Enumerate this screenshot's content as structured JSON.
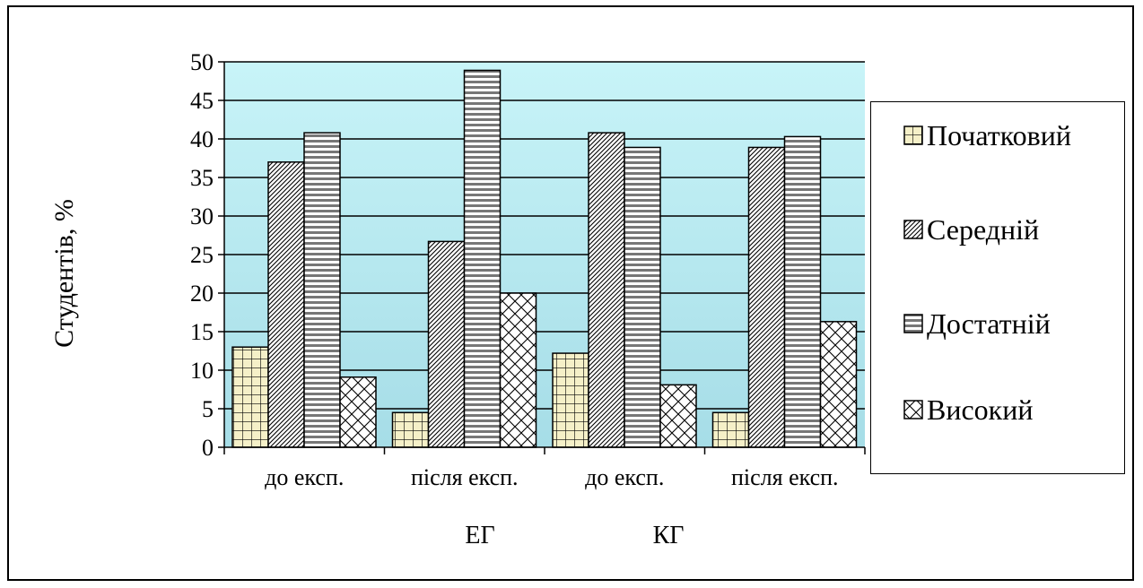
{
  "chart_data": {
    "type": "bar",
    "title": "",
    "ylabel": "Студентів, %",
    "ylim": [
      0,
      50
    ],
    "ytick_step": 5,
    "yticks": [
      "0",
      "5",
      "10",
      "15",
      "20",
      "25",
      "30",
      "35",
      "40",
      "45",
      "50"
    ],
    "grid": true,
    "legend_position": "right",
    "categories": [
      "до експ.",
      "після експ.",
      "до експ.",
      "після експ."
    ],
    "groups": [
      "ЕГ",
      "КГ"
    ],
    "series": [
      {
        "name": "Початковий",
        "values": [
          13,
          4.5,
          12.2,
          4.5
        ],
        "pattern": "grid"
      },
      {
        "name": "Середній",
        "values": [
          37,
          26.7,
          40.8,
          38.9
        ],
        "pattern": "diag"
      },
      {
        "name": "Достатній",
        "values": [
          40.8,
          48.9,
          38.9,
          40.3
        ],
        "pattern": "hstripe"
      },
      {
        "name": "Високий",
        "values": [
          9.1,
          20,
          8.1,
          16.3
        ],
        "pattern": "cross"
      }
    ],
    "colors": {
      "plot_background_top": "#c8f4f8",
      "plot_background_bottom": "#a6dde7",
      "grid_line": "#000000",
      "grid_fill": "#f5f0c8"
    }
  }
}
